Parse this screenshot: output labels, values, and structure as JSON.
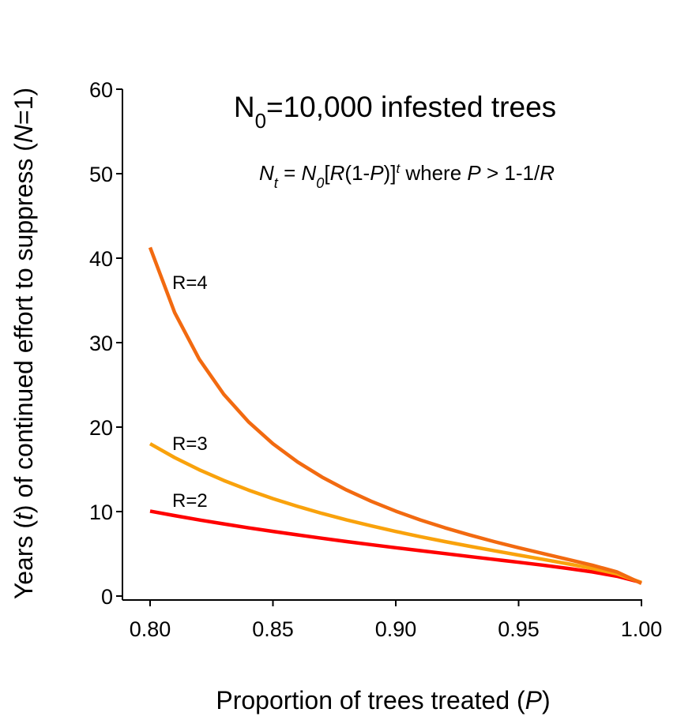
{
  "chart_data": {
    "type": "line",
    "title": [
      "N",
      "0",
      "=10,000 infested trees"
    ],
    "annotation": [
      "N",
      "t",
      " = ",
      "N",
      "0",
      "[",
      "R",
      "(1-",
      "P",
      ")]",
      "t",
      " where ",
      "P",
      " > 1-1/",
      "R"
    ],
    "x_label": [
      "Proportion of trees treated (",
      "P",
      ")"
    ],
    "y_label": [
      "Years (",
      "t",
      ") of continued effort to suppress (",
      "N",
      "=1)"
    ],
    "x": [
      0.8,
      0.81,
      0.82,
      0.83,
      0.84,
      0.85,
      0.86,
      0.87,
      0.88,
      0.89,
      0.9,
      0.91,
      0.92,
      0.93,
      0.94,
      0.95,
      0.96,
      0.97,
      0.98,
      0.99,
      1.0
    ],
    "series": [
      {
        "name": "R=2",
        "color": "#ff0000",
        "values": [
          10.05,
          9.52,
          9.01,
          8.54,
          8.08,
          7.65,
          7.24,
          6.84,
          6.45,
          6.08,
          5.72,
          5.37,
          5.03,
          4.68,
          4.34,
          4.0,
          3.65,
          3.27,
          2.86,
          2.35,
          1.6
        ]
      },
      {
        "name": "R=3",
        "color": "#f9a20c",
        "values": [
          18.03,
          16.39,
          14.95,
          13.68,
          12.55,
          11.53,
          10.62,
          9.78,
          9.01,
          8.31,
          7.65,
          7.03,
          6.45,
          5.9,
          5.37,
          4.85,
          4.34,
          3.82,
          3.27,
          2.63,
          1.6
        ]
      },
      {
        "name": "R=4",
        "color": "#f26a10",
        "values": [
          41.27,
          33.56,
          28.04,
          23.88,
          20.64,
          18.03,
          15.88,
          14.08,
          12.55,
          11.22,
          10.05,
          9.01,
          8.08,
          7.24,
          6.45,
          5.72,
          5.03,
          4.34,
          3.65,
          2.86,
          1.5
        ]
      }
    ],
    "xlim": [
      0.8,
      1.0
    ],
    "xticks": [
      {
        "value": 0.8,
        "label": "0.80"
      },
      {
        "value": 0.85,
        "label": "0.85"
      },
      {
        "value": 0.9,
        "label": "0.90"
      },
      {
        "value": 0.95,
        "label": "0.95"
      },
      {
        "value": 1.0,
        "label": "1.00"
      }
    ],
    "ylim": [
      0,
      60
    ],
    "yticks": [
      0,
      10,
      20,
      30,
      40,
      50,
      60
    ]
  }
}
